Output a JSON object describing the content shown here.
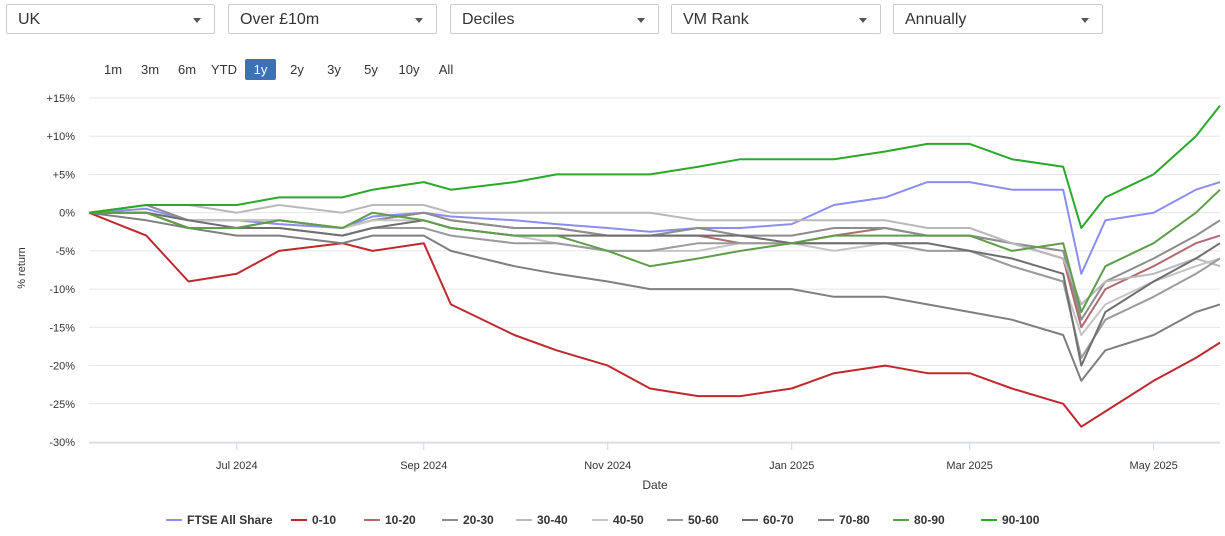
{
  "filters": [
    {
      "value": "UK"
    },
    {
      "value": "Over £10m"
    },
    {
      "value": "Deciles"
    },
    {
      "value": "VM Rank"
    },
    {
      "value": "Annually"
    }
  ],
  "ranges": [
    "1m",
    "3m",
    "6m",
    "YTD",
    "1y",
    "2y",
    "3y",
    "5y",
    "10y",
    "All"
  ],
  "active_range": "1y",
  "chart_data": {
    "type": "line",
    "xlabel": "Date",
    "ylabel": "% return",
    "ylim": [
      -30,
      15
    ],
    "yticks": [
      15,
      10,
      5,
      0,
      -5,
      -10,
      -15,
      -20,
      -25,
      -30
    ],
    "ytick_labels": [
      "+15%",
      "+10%",
      "+5%",
      "0%",
      "-5%",
      "-10%",
      "-15%",
      "-20%",
      "-25%",
      "-30%"
    ],
    "x_start": "2024-05-13",
    "x_end": "2025-05-23",
    "xticks": [
      {
        "date": "2024-07-01",
        "label": "Jul 2024"
      },
      {
        "date": "2024-09-01",
        "label": "Sep 2024"
      },
      {
        "date": "2024-11-01",
        "label": "Nov 2024"
      },
      {
        "date": "2025-01-01",
        "label": "Jan 2025"
      },
      {
        "date": "2025-03-01",
        "label": "Mar 2025"
      },
      {
        "date": "2025-05-01",
        "label": "May 2025"
      }
    ],
    "grid": true,
    "legend_position": "bottom",
    "dates": [
      "2024-05-13",
      "2024-06-01",
      "2024-06-15",
      "2024-07-01",
      "2024-07-15",
      "2024-08-05",
      "2024-08-15",
      "2024-09-01",
      "2024-09-10",
      "2024-10-01",
      "2024-10-15",
      "2024-11-01",
      "2024-11-15",
      "2024-12-01",
      "2024-12-15",
      "2025-01-01",
      "2025-01-15",
      "2025-02-01",
      "2025-02-15",
      "2025-03-01",
      "2025-03-15",
      "2025-04-01",
      "2025-04-07",
      "2025-04-15",
      "2025-05-01",
      "2025-05-15",
      "2025-05-23"
    ],
    "series": [
      {
        "name": "FTSE All Share",
        "color": "#8b8ef0",
        "values": [
          0,
          0.5,
          -1,
          -1,
          -1.5,
          -2,
          -0.5,
          0,
          -0.5,
          -1,
          -1.5,
          -2,
          -2.5,
          -2,
          -2,
          -1.5,
          1,
          2,
          4,
          4,
          3,
          3,
          -8,
          -1,
          0,
          3,
          4
        ]
      },
      {
        "name": "0-10",
        "color": "#c0282d",
        "values": [
          0,
          -3,
          -9,
          -8,
          -5,
          -4,
          -5,
          -4,
          -12,
          -16,
          -18,
          -20,
          -23,
          -24,
          -24,
          -23,
          -21,
          -20,
          -21,
          -21,
          -23,
          -25,
          -28,
          -26,
          -22,
          -19,
          -17
        ]
      },
      {
        "name": "10-20",
        "color": "#b06a70",
        "values": [
          0,
          0,
          -2,
          -2,
          -1,
          -2,
          -1,
          0,
          -1,
          -2,
          -2,
          -3,
          -3,
          -3,
          -4,
          -4,
          -3,
          -2,
          -3,
          -3,
          -4,
          -6,
          -15,
          -10,
          -7,
          -4,
          -3
        ]
      },
      {
        "name": "20-30",
        "color": "#8d8d8d",
        "values": [
          0,
          1,
          -1,
          -1,
          -1,
          -2,
          -1,
          0,
          -1,
          -2,
          -2,
          -3,
          -3,
          -2,
          -3,
          -3,
          -2,
          -2,
          -3,
          -3,
          -4,
          -5,
          -14,
          -9,
          -6,
          -3,
          -1
        ]
      },
      {
        "name": "30-40",
        "color": "#b9b9b9",
        "values": [
          0,
          1,
          1,
          0,
          1,
          0,
          1,
          1,
          0,
          0,
          0,
          0,
          0,
          -1,
          -1,
          -1,
          -1,
          -1,
          -2,
          -2,
          -4,
          -6,
          -12,
          -9,
          -8,
          -6,
          -7
        ]
      },
      {
        "name": "40-50",
        "color": "#c4c4c4",
        "values": [
          0,
          0,
          -1,
          -1,
          -1,
          -2,
          -1,
          -1,
          -2,
          -3,
          -4,
          -5,
          -5,
          -5,
          -4,
          -4,
          -5,
          -4,
          -4,
          -5,
          -7,
          -9,
          -16,
          -12,
          -9,
          -7,
          -6
        ]
      },
      {
        "name": "50-60",
        "color": "#9b9b9b",
        "values": [
          0,
          0,
          -2,
          -2,
          -2,
          -3,
          -2,
          -2,
          -3,
          -4,
          -4,
          -5,
          -5,
          -4,
          -4,
          -4,
          -4,
          -4,
          -5,
          -5,
          -7,
          -9,
          -19,
          -14,
          -11,
          -8,
          -6
        ]
      },
      {
        "name": "60-70",
        "color": "#6f6f6f",
        "values": [
          0,
          0,
          -1,
          -2,
          -2,
          -3,
          -2,
          -1,
          -2,
          -3,
          -3,
          -3,
          -3,
          -3,
          -3,
          -4,
          -4,
          -4,
          -4,
          -5,
          -6,
          -8,
          -20,
          -13,
          -9,
          -6,
          -4
        ]
      },
      {
        "name": "70-80",
        "color": "#7f7f7f",
        "values": [
          0,
          -1,
          -2,
          -3,
          -3,
          -4,
          -3,
          -3,
          -5,
          -7,
          -8,
          -9,
          -10,
          -10,
          -10,
          -10,
          -11,
          -11,
          -12,
          -13,
          -14,
          -16,
          -22,
          -18,
          -16,
          -13,
          -12
        ]
      },
      {
        "name": "80-90",
        "color": "#5e9e4a",
        "values": [
          0,
          0,
          -2,
          -2,
          -1,
          -2,
          0,
          -1,
          -2,
          -3,
          -3,
          -5,
          -7,
          -6,
          -5,
          -4,
          -3,
          -3,
          -3,
          -3,
          -5,
          -4,
          -13,
          -7,
          -4,
          0,
          3
        ]
      },
      {
        "name": "90-100",
        "color": "#2aa82a",
        "values": [
          0,
          1,
          1,
          1,
          2,
          2,
          3,
          4,
          3,
          4,
          5,
          5,
          5,
          6,
          7,
          7,
          7,
          8,
          9,
          9,
          7,
          6,
          -2,
          2,
          5,
          10,
          14
        ]
      }
    ]
  }
}
